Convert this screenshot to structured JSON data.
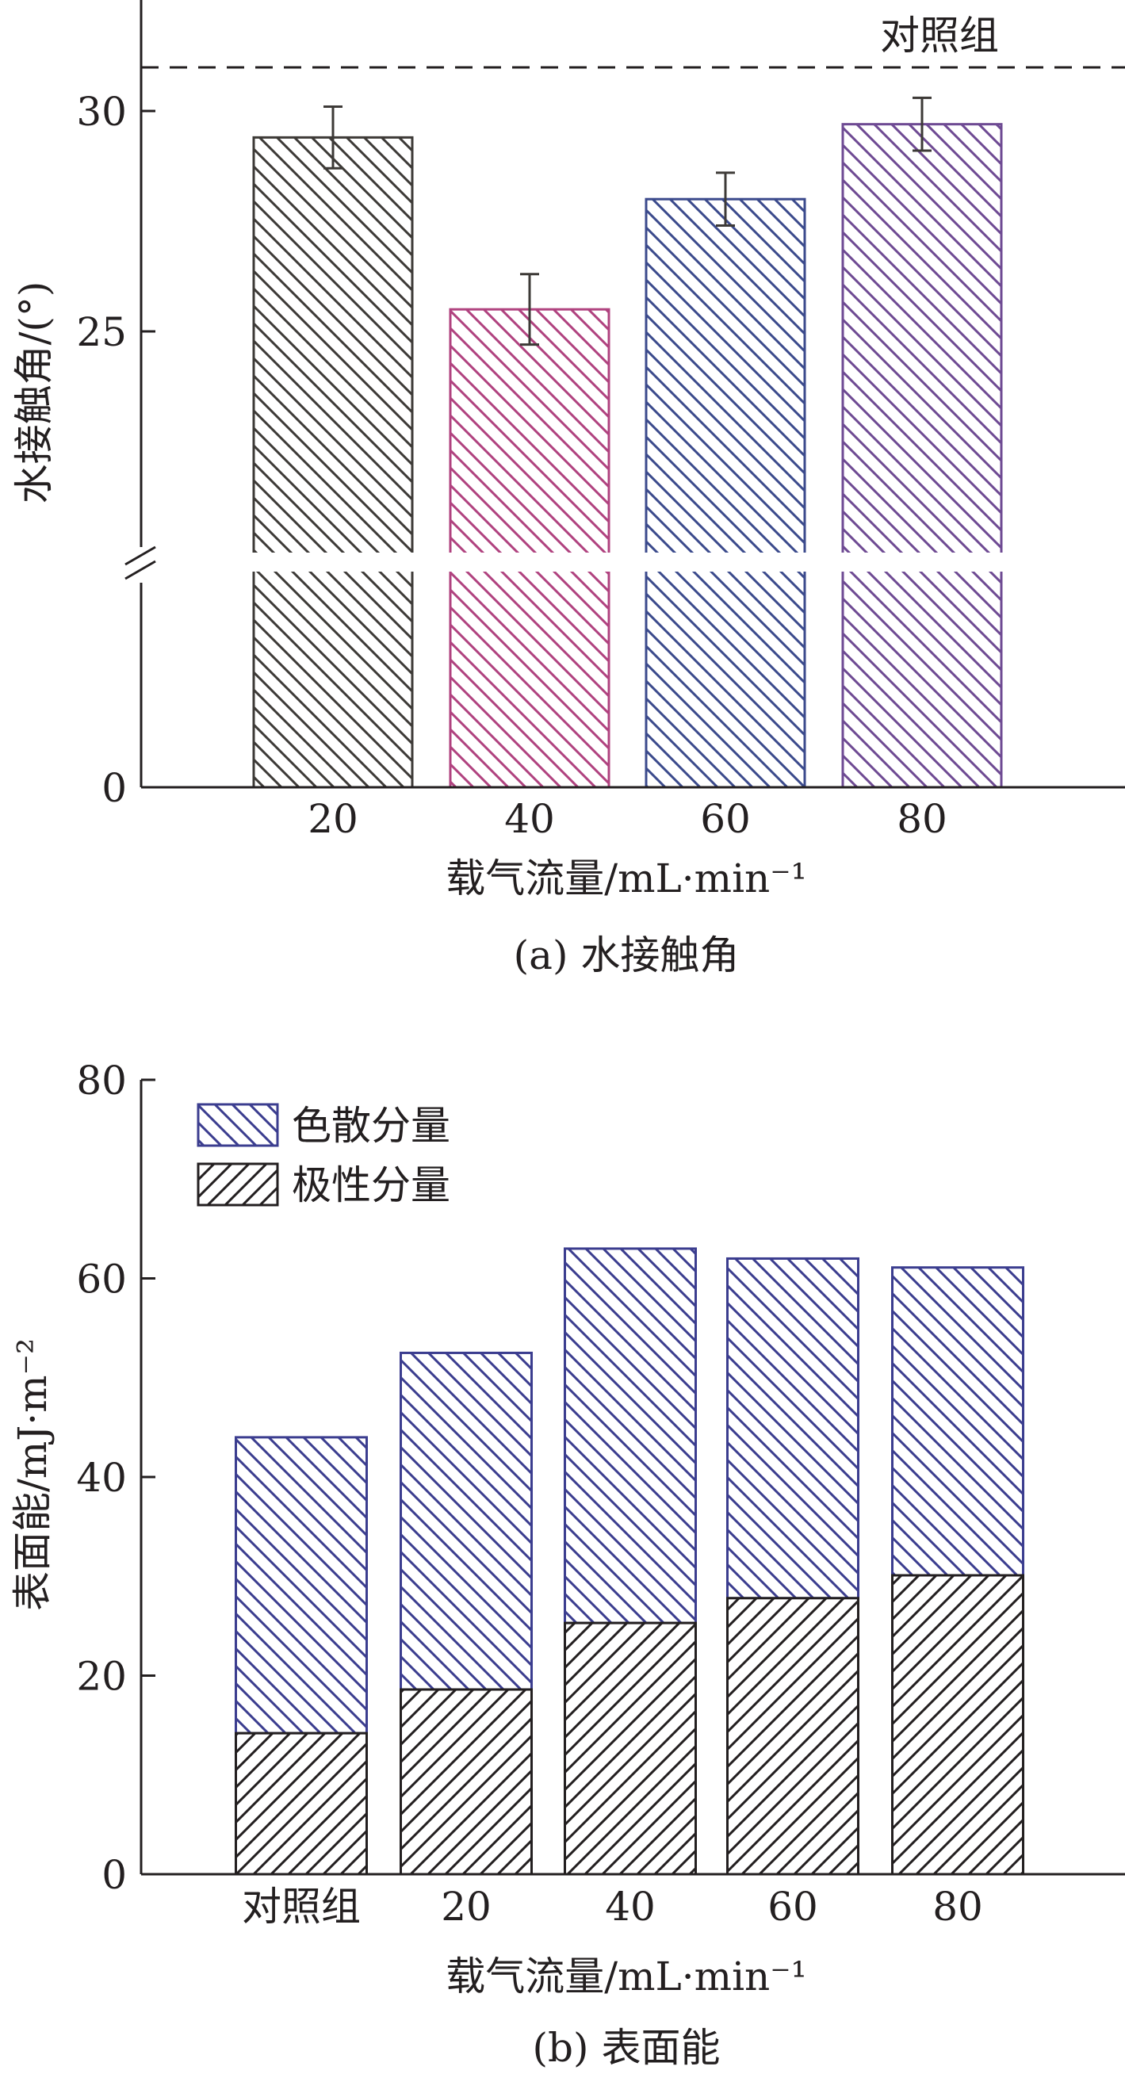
{
  "chart_data": [
    {
      "type": "bar",
      "caption": "(a) 水接触角",
      "xlabel": "载气流量/mL·min⁻¹",
      "ylabel": "水接触角/(°)",
      "categories": [
        "20",
        "40",
        "60",
        "80"
      ],
      "values": [
        29.4,
        25.5,
        28.0,
        29.7
      ],
      "errors": [
        0.7,
        0.8,
        0.6,
        0.6
      ],
      "bar_colors": [
        "#3d3a37",
        "#b0427f",
        "#3b4a8c",
        "#6e4a93"
      ],
      "y_ticks": [
        "0",
        "25",
        "30"
      ],
      "y_axis_break": true,
      "ylim_upper_segment": [
        20,
        32
      ],
      "reference_line": {
        "label": "对照组",
        "value": 31.0,
        "style": "dashed"
      }
    },
    {
      "type": "bar",
      "stacked": true,
      "caption": "(b) 表面能",
      "xlabel": "载气流量/mL·min⁻¹",
      "ylabel": "表面能/mJ·m⁻²",
      "categories": [
        "对照组",
        "20",
        "40",
        "60",
        "80"
      ],
      "ylim": [
        0,
        80
      ],
      "y_ticks": [
        "0",
        "20",
        "40",
        "60",
        "80"
      ],
      "series": [
        {
          "name": "极性分量",
          "values": [
            14.2,
            18.6,
            25.3,
            27.8,
            30.1
          ],
          "color": "#231f20",
          "hatch": "forward"
        },
        {
          "name": "色散分量",
          "values": [
            29.8,
            33.9,
            37.7,
            34.2,
            31.0
          ],
          "color": "#3b3d8f",
          "hatch": "backward"
        }
      ],
      "legend": [
        "色散分量",
        "极性分量"
      ],
      "legend_position": "top-left"
    }
  ]
}
